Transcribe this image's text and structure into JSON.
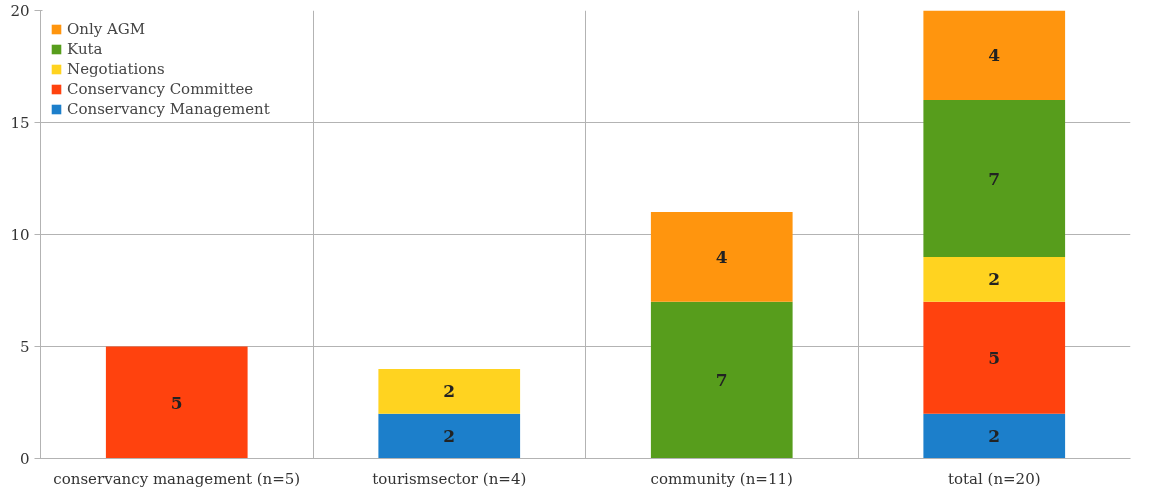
{
  "chart_data": {
    "type": "bar",
    "stacked": true,
    "categories": [
      "conservancy management (n=5)",
      "tourismsector (n=4)",
      "community (n=11)",
      "total (n=20)"
    ],
    "series": [
      {
        "name": "Conservancy Management",
        "color": "#1c7fcb",
        "values": [
          null,
          2,
          null,
          2
        ]
      },
      {
        "name": "Conservancy Committee",
        "color": "#ff420e",
        "values": [
          5,
          null,
          null,
          5
        ]
      },
      {
        "name": "Negotiations",
        "color": "#ffd320",
        "values": [
          null,
          2,
          null,
          2
        ]
      },
      {
        "name": "Kuta",
        "color": "#579d1c",
        "values": [
          null,
          null,
          7,
          7
        ]
      },
      {
        "name": "Only AGM",
        "color": "#ff950e",
        "values": [
          null,
          null,
          4,
          4
        ]
      }
    ],
    "ylim": [
      0,
      20
    ],
    "yticks": [
      0,
      5,
      10,
      15,
      20
    ],
    "grid": true,
    "legend": "top left",
    "data_labels": true
  }
}
